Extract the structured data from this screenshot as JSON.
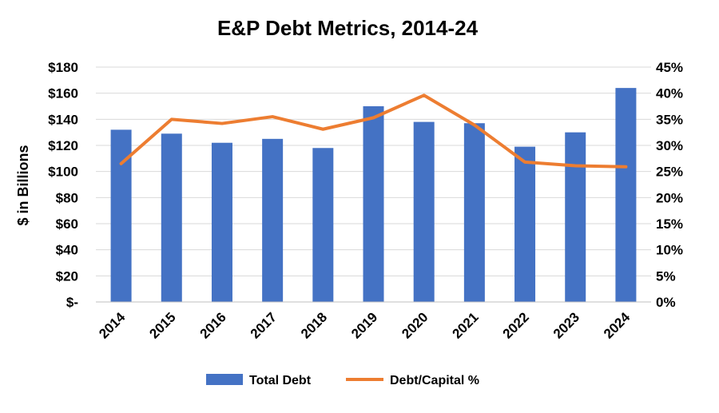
{
  "chart_data": {
    "type": "bar",
    "title": "E&P Debt Metrics, 2014-24",
    "xlabel": "",
    "ylabel": "$ in Billions",
    "y2label": "",
    "categories": [
      "2014",
      "2015",
      "2016",
      "2017",
      "2018",
      "2019",
      "2020",
      "2021",
      "2022",
      "2023",
      "2024"
    ],
    "ylim": [
      0,
      180
    ],
    "y2lim": [
      0,
      45
    ],
    "y_ticks": [
      "$-",
      "$20",
      "$40",
      "$60",
      "$80",
      "$100",
      "$120",
      "$140",
      "$160",
      "$180"
    ],
    "y2_ticks": [
      "0%",
      "5%",
      "10%",
      "15%",
      "20%",
      "25%",
      "30%",
      "35%",
      "40%",
      "45%"
    ],
    "grid": true,
    "legend_position": "bottom",
    "series": [
      {
        "name": "Total Debt",
        "type": "bar",
        "axis": "left",
        "color": "#4472C4",
        "values": [
          132,
          129,
          122,
          125,
          118,
          150,
          138,
          137,
          119,
          130,
          164
        ]
      },
      {
        "name": "Debt/Capital %",
        "type": "line",
        "axis": "right",
        "color": "#ED7D31",
        "values": [
          26.5,
          35.0,
          34.2,
          35.5,
          33.1,
          35.3,
          39.6,
          33.9,
          26.8,
          26.1,
          25.9
        ]
      }
    ]
  }
}
